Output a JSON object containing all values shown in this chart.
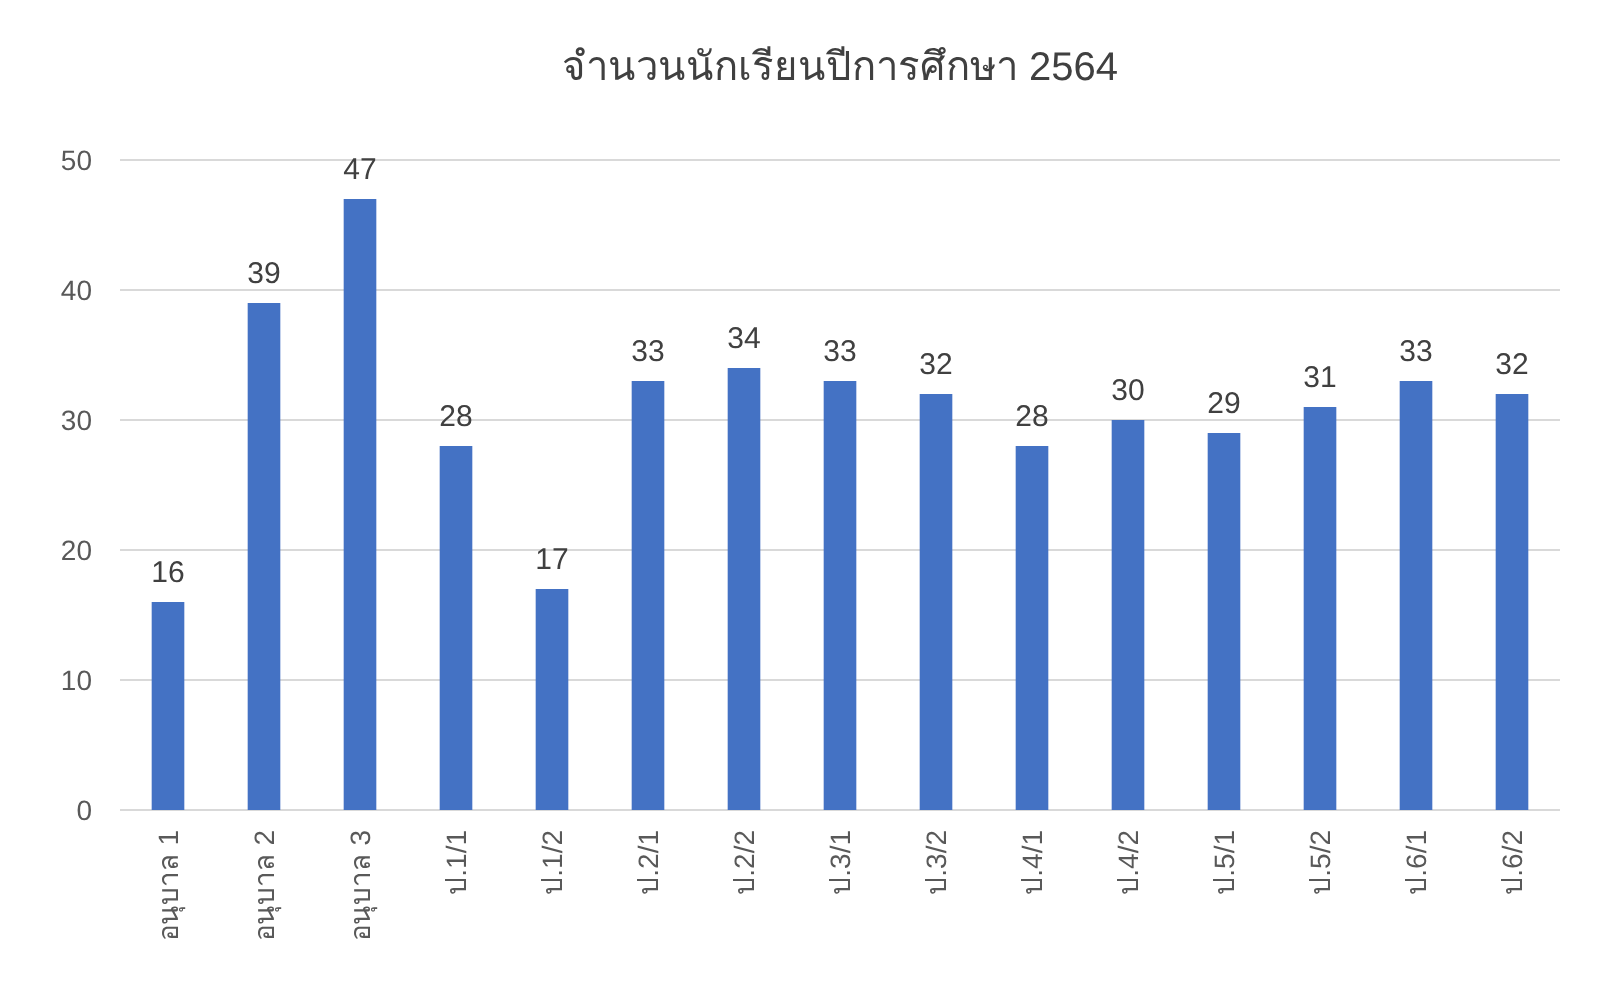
{
  "chart_data": {
    "type": "bar",
    "title": "จำนวนนักเรียนปีการศึกษา 2564",
    "categories": [
      "อนุบาล 1",
      "อนุบาล 2",
      "อนุบาล 3",
      "ป.1/1",
      "ป.1/2",
      "ป.2/1",
      "ป.2/2",
      "ป.3/1",
      "ป.3/2",
      "ป.4/1",
      "ป.4/2",
      "ป.5/1",
      "ป.5/2",
      "ป.6/1",
      "ป.6/2"
    ],
    "values": [
      16,
      39,
      47,
      28,
      17,
      33,
      34,
      33,
      32,
      28,
      30,
      29,
      31,
      33,
      32
    ],
    "color": "#4472c4",
    "ylim": [
      0,
      50
    ],
    "yticks": [
      0,
      10,
      20,
      30,
      40,
      50
    ],
    "grid": "y",
    "data_labels": true
  }
}
